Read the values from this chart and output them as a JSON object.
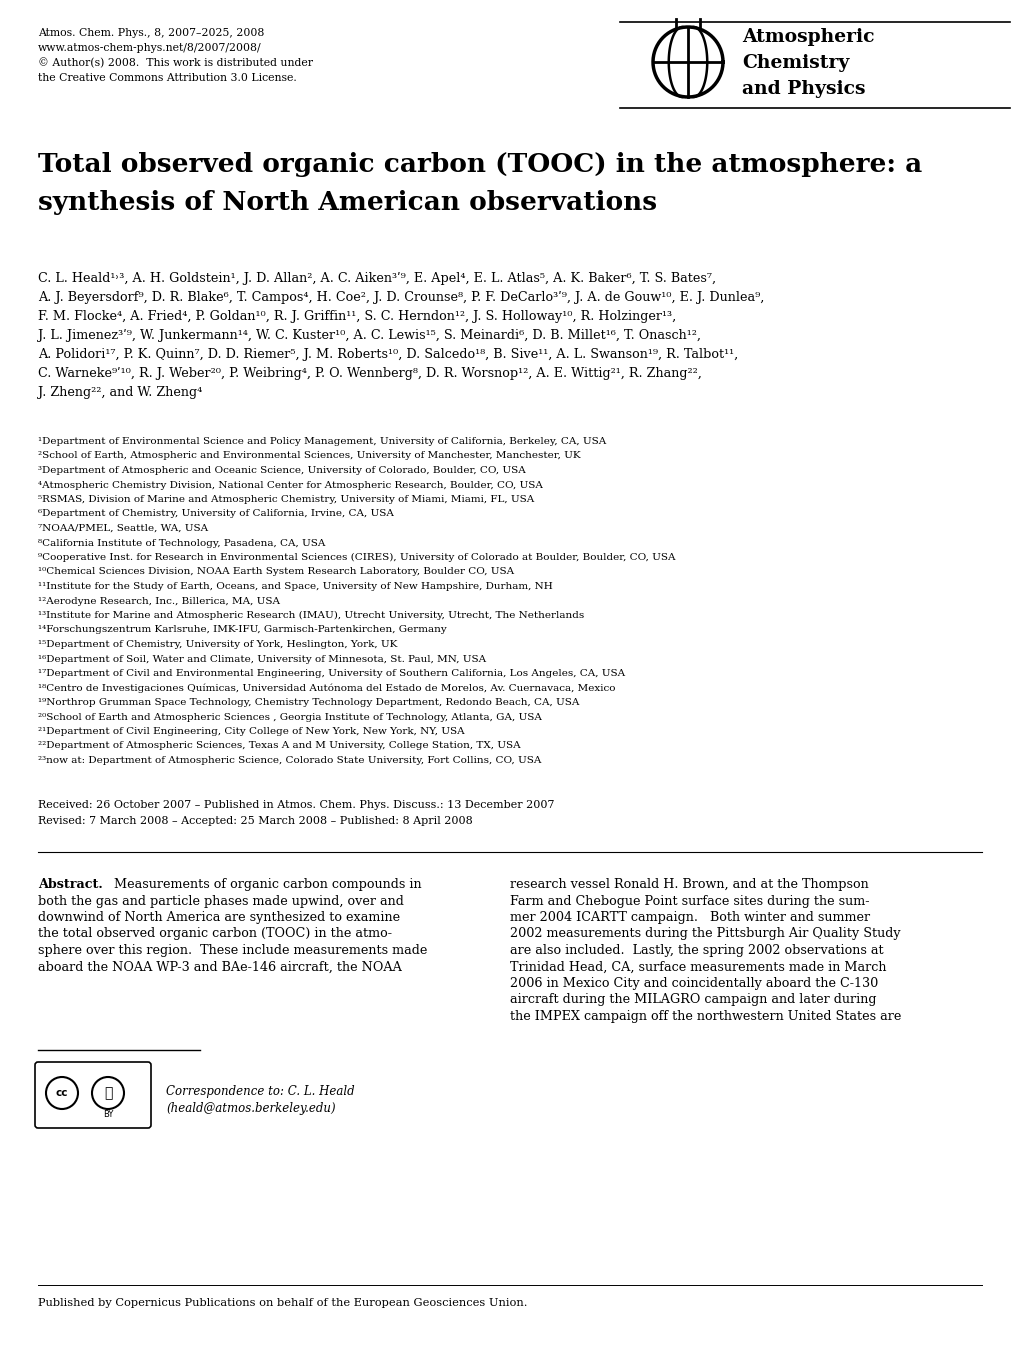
{
  "header_left_lines": [
    "Atmos. Chem. Phys., 8, 2007–2025, 2008",
    "www.atmos-chem-phys.net/8/2007/2008/",
    "© Author(s) 2008.  This work is distributed under",
    "the Creative Commons Attribution 3.0 License."
  ],
  "journal_name_lines": [
    "Atmospheric",
    "Chemistry",
    "and Physics"
  ],
  "title_line1": "Total observed organic carbon (TOOC) in the atmosphere: a",
  "title_line2": "synthesis of North American observations",
  "author_lines": [
    "C. L. Heald¹˒³, A. H. Goldstein¹, J. D. Allan², A. C. Aiken³ʹ⁹, E. Apel⁴, E. L. Atlas⁵, A. K. Baker⁶, T. S. Bates⁷,",
    "A. J. Beyersdorf⁹, D. R. Blake⁶, T. Campos⁴, H. Coe², J. D. Crounse⁸, P. F. DeCarlo³ʹ⁹, J. A. de Gouw¹⁰, E. J. Dunlea⁹,",
    "F. M. Flocke⁴, A. Fried⁴, P. Goldan¹⁰, R. J. Griffin¹¹, S. C. Herndon¹², J. S. Holloway¹⁰, R. Holzinger¹³,",
    "J. L. Jimenez³ʹ⁹, W. Junkermann¹⁴, W. C. Kuster¹⁰, A. C. Lewis¹⁵, S. Meinardi⁶, D. B. Millet¹⁶, T. Onasch¹²,",
    "A. Polidori¹⁷, P. K. Quinn⁷, D. D. Riemer⁵, J. M. Roberts¹⁰, D. Salcedo¹⁸, B. Sive¹¹, A. L. Swanson¹⁹, R. Talbot¹¹,",
    "C. Warneke⁹ʹ¹⁰, R. J. Weber²⁰, P. Weibring⁴, P. O. Wennberg⁸, D. R. Worsnop¹², A. E. Wittig²¹, R. Zhang²²,",
    "J. Zheng²², and W. Zheng⁴"
  ],
  "affiliations": [
    "¹Department of Environmental Science and Policy Management, University of California, Berkeley, CA, USA",
    "²School of Earth, Atmospheric and Environmental Sciences, University of Manchester, Manchester, UK",
    "³Department of Atmospheric and Oceanic Science, University of Colorado, Boulder, CO, USA",
    "⁴Atmospheric Chemistry Division, National Center for Atmospheric Research, Boulder, CO, USA",
    "⁵RSMAS, Division of Marine and Atmospheric Chemistry, University of Miami, Miami, FL, USA",
    "⁶Department of Chemistry, University of California, Irvine, CA, USA",
    "⁷NOAA/PMEL, Seattle, WA, USA",
    "⁸California Institute of Technology, Pasadena, CA, USA",
    "⁹Cooperative Inst. for Research in Environmental Sciences (CIRES), University of Colorado at Boulder, Boulder, CO, USA",
    "¹⁰Chemical Sciences Division, NOAA Earth System Research Laboratory, Boulder CO, USA",
    "¹¹Institute for the Study of Earth, Oceans, and Space, University of New Hampshire, Durham, NH",
    "¹²Aerodyne Research, Inc., Billerica, MA, USA",
    "¹³Institute for Marine and Atmospheric Research (IMAU), Utrecht University, Utrecht, The Netherlands",
    "¹⁴Forschungszentrum Karlsruhe, IMK-IFU, Garmisch-Partenkirchen, Germany",
    "¹⁵Department of Chemistry, University of York, Heslington, York, UK",
    "¹⁶Department of Soil, Water and Climate, University of Minnesota, St. Paul, MN, USA",
    "¹⁷Department of Civil and Environmental Engineering, University of Southern California, Los Angeles, CA, USA",
    "¹⁸Centro de Investigaciones Químicas, Universidad Autónoma del Estado de Morelos, Av. Cuernavaca, Mexico",
    "¹⁹Northrop Grumman Space Technology, Chemistry Technology Department, Redondo Beach, CA, USA",
    "²⁰School of Earth and Atmospheric Sciences , Georgia Institute of Technology, Atlanta, GA, USA",
    "²¹Department of Civil Engineering, City College of New York, New York, NY, USA",
    "²²Department of Atmospheric Sciences, Texas A and M University, College Station, TX, USA",
    "²³now at: Department of Atmospheric Science, Colorado State University, Fort Collins, CO, USA"
  ],
  "received_line": "Received: 26 October 2007 – Published in Atmos. Chem. Phys. Discuss.: 13 December 2007",
  "revised_line": "Revised: 7 March 2008 – Accepted: 25 March 2008 – Published: 8 April 2008",
  "abstract_left_lines": [
    "Measurements of organic carbon compounds in",
    "both the gas and particle phases made upwind, over and",
    "downwind of North America are synthesized to examine",
    "the total observed organic carbon (TOOC) in the atmo-",
    "sphere over this region.  These include measurements made",
    "aboard the NOAA WP-3 and BAe-146 aircraft, the NOAA"
  ],
  "abstract_right_lines": [
    "research vessel Ronald H. Brown, and at the Thompson",
    "Farm and Chebogue Point surface sites during the sum-",
    "mer 2004 ICARTT campaign.   Both winter and summer",
    "2002 measurements during the Pittsburgh Air Quality Study",
    "are also included.  Lastly, the spring 2002 observations at",
    "Trinidad Head, CA, surface measurements made in March",
    "2006 in Mexico City and coincidentally aboard the C-130",
    "aircraft during the MILAGRO campaign and later during",
    "the IMPEX campaign off the northwestern United States are"
  ],
  "correspondence_line1": "Correspondence to: C. L. Heald",
  "correspondence_line2": "(heald@atmos.berkeley.edu)",
  "footer_line": "Published by Copernicus Publications on behalf of the European Geosciences Union."
}
